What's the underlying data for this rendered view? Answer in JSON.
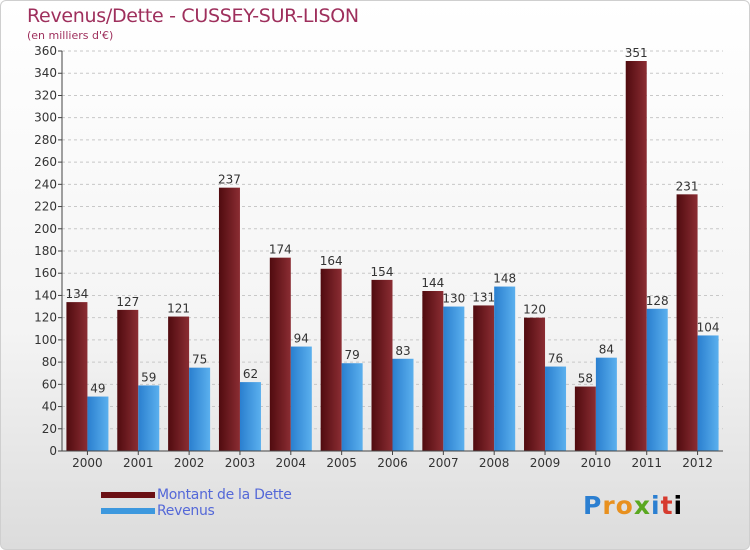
{
  "chart_data": {
    "type": "bar",
    "title": "Revenus/Dette - CUSSEY-SUR-LISON",
    "subtitle": "(en milliers d'€)",
    "categories": [
      "2000",
      "2001",
      "2002",
      "2003",
      "2004",
      "2005",
      "2006",
      "2007",
      "2008",
      "2009",
      "2010",
      "2011",
      "2012"
    ],
    "series": [
      {
        "name": "Montant de la Dette",
        "color": "#6b1014",
        "values": [
          134,
          127,
          121,
          237,
          174,
          164,
          154,
          144,
          131,
          120,
          58,
          351,
          231
        ]
      },
      {
        "name": "Revenus",
        "color": "#3d98de",
        "values": [
          49,
          59,
          75,
          62,
          94,
          79,
          83,
          130,
          148,
          76,
          84,
          128,
          104
        ]
      }
    ],
    "ylim": [
      0,
      360
    ],
    "ytick_step": 20,
    "grid": "horizontal-dashed",
    "legend_position": "bottom-left"
  },
  "logo": {
    "letters": [
      "P",
      "r",
      "o",
      "x",
      "i",
      "t",
      "i"
    ]
  }
}
